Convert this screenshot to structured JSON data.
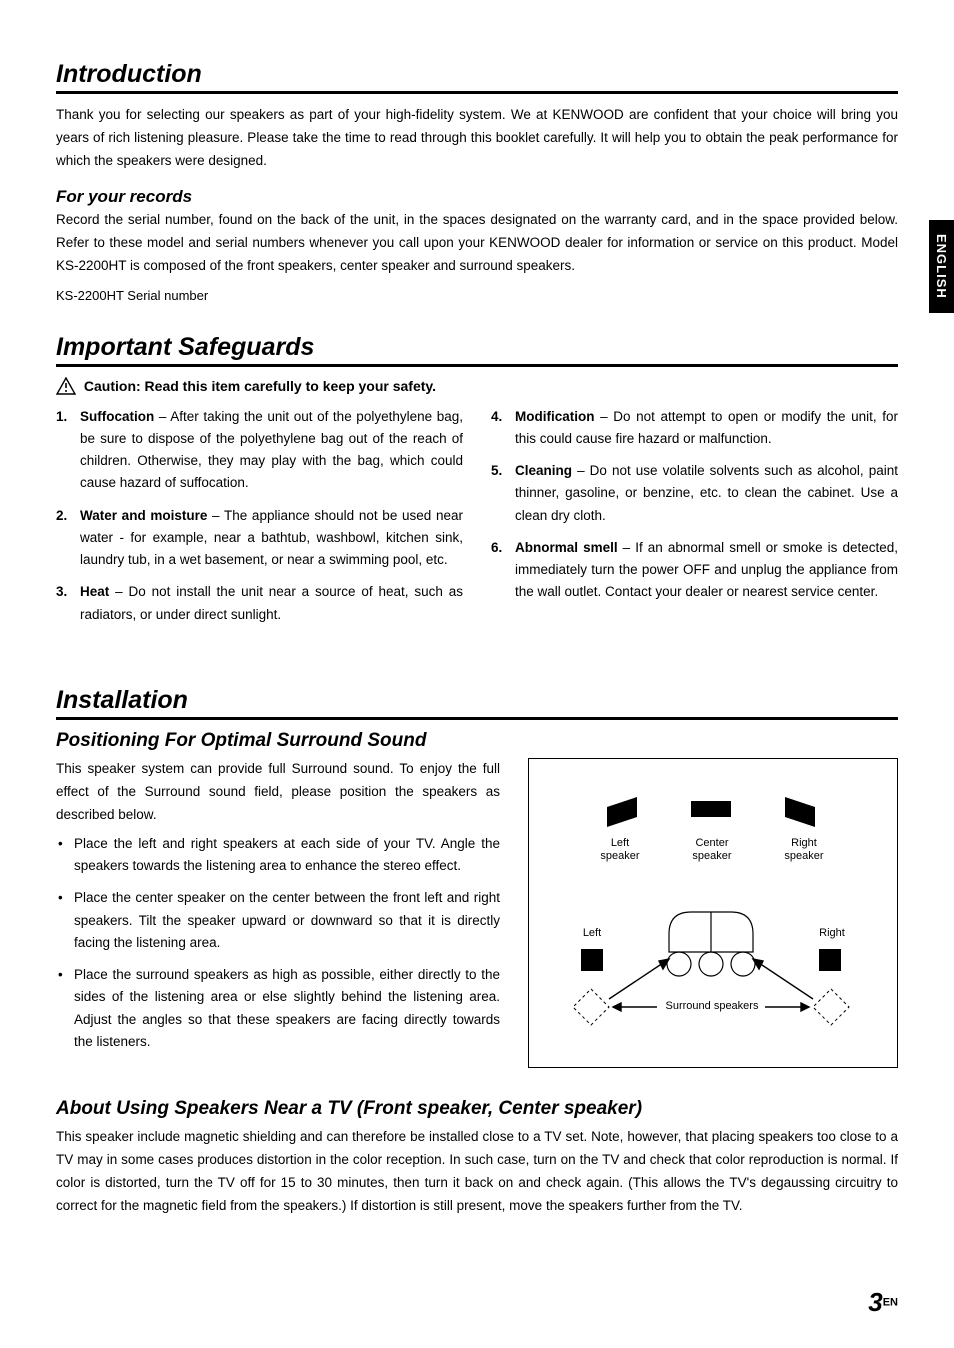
{
  "lang_tab": "ENGLISH",
  "intro": {
    "title": "Introduction",
    "body": "Thank you for selecting our speakers as part of your high-fidelity system. We at KENWOOD are confident that your choice will bring you years of rich listening pleasure. Please take the time to read through this booklet carefully. It will help you to obtain the peak performance for which the speakers were designed.",
    "records_heading": "For your records",
    "records_body": "Record the serial number, found on the back of the unit, in the spaces designated on the warranty card, and in the space provided below. Refer to these model and serial numbers whenever you call upon your KENWOOD dealer for information or service on this product. Model KS-2200HT is composed of the front speakers, center speaker and surround speakers.",
    "serial_label": "KS-2200HT Serial number"
  },
  "safeguards": {
    "title": "Important Safeguards",
    "caution": "Caution:  Read this item carefully to keep your safety.",
    "items": [
      {
        "num": "1.",
        "term": "Suffocation",
        "text": " – After taking the unit out of the polyethylene bag, be sure to dispose of the polyethylene bag out of the reach of children. Otherwise, they may play with the bag, which could cause hazard of suffocation."
      },
      {
        "num": "2.",
        "term": "Water and moisture",
        "text": " – The appliance should not be used near water - for example, near a bathtub, washbowl, kitchen sink, laundry tub, in a wet basement, or near a swimming pool, etc."
      },
      {
        "num": "3.",
        "term": "Heat",
        "text": " – Do not install the unit near a source of heat, such as radiators, or under direct sunlight."
      },
      {
        "num": "4.",
        "term": "Modification",
        "text": " – Do not attempt to open or modify the unit, for this could cause fire hazard or malfunction."
      },
      {
        "num": "5.",
        "term": "Cleaning",
        "text": " – Do not use volatile solvents such as alcohol, paint thinner, gasoline, or benzine, etc. to clean the cabinet. Use a clean dry cloth."
      },
      {
        "num": "6.",
        "term": "Abnormal smell",
        "text": " – If an abnormal smell or smoke is detected, immediately turn the power OFF and unplug the appliance from the wall outlet. Contact your dealer or nearest service center."
      }
    ]
  },
  "install": {
    "title": "Installation",
    "pos_heading": "Positioning For Optimal Surround Sound",
    "pos_intro": "This speaker system can provide full Surround sound. To enjoy the full effect of the Surround sound field, please position the speakers as described below.",
    "bullets": [
      "Place the left and right speakers at each side of your TV. Angle the speakers towards the listening area to enhance the stereo effect.",
      "Place the center speaker on the center between the front left and right speakers. Tilt the speaker upward or downward so that it is directly facing the listening area.",
      "Place the surround speakers as high as possible, either directly to the sides of the listening area or else slightly behind the listening area. Adjust the angles so that these speakers are facing directly towards the listeners."
    ],
    "tv_heading": "About Using Speakers Near a TV (Front speaker, Center speaker)",
    "tv_body": "This speaker include magnetic shielding and can therefore be installed close to a TV set. Note, however, that placing speakers too close to a TV may in some cases produces distortion in the color reception. In such case, turn on the TV and check that color reproduction is normal. If color is distorted, turn the TV off for 15 to 30 minutes, then turn it back on and check again. (This allows the TV's degaussing circuitry to correct for the magnetic field from the speakers.) If distortion is still present, move the speakers further from the TV."
  },
  "diagram": {
    "left_speaker": "Left\nspeaker",
    "center_speaker": "Center\nspeaker",
    "right_speaker": "Right\nspeaker",
    "left": "Left",
    "right": "Right",
    "surround": "Surround speakers"
  },
  "page": {
    "num": "3",
    "lang": "EN"
  },
  "colors": {
    "text": "#000000",
    "bg": "#ffffff"
  }
}
